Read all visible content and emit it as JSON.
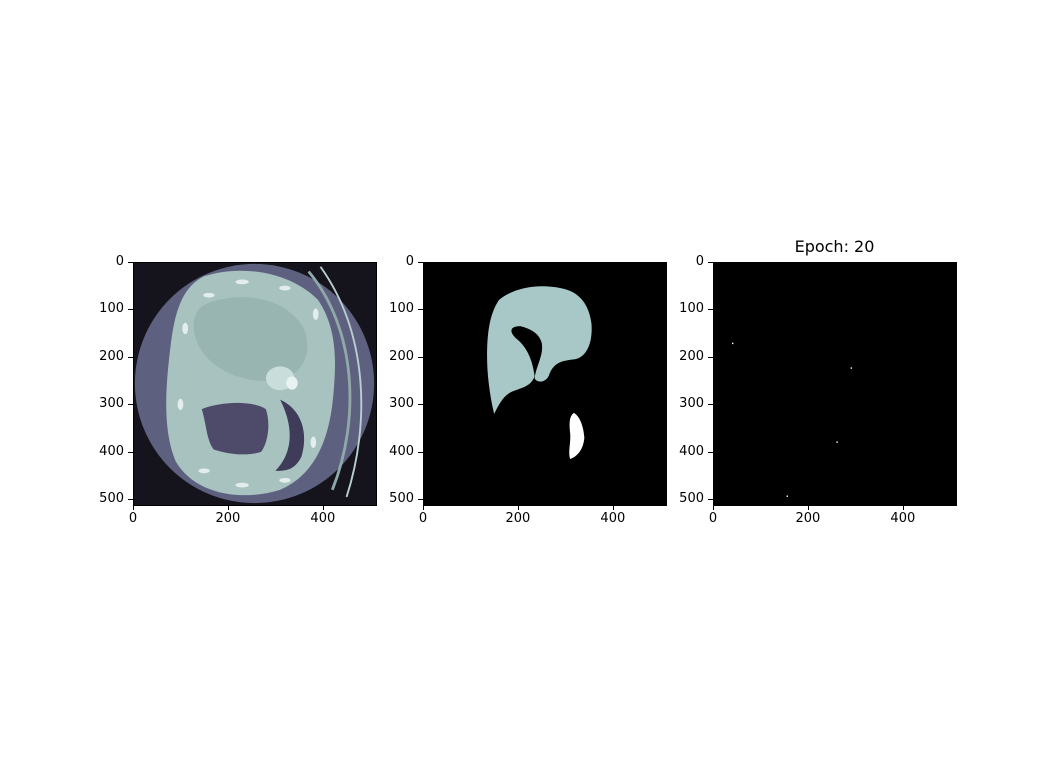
{
  "figure": {
    "panels": [
      {
        "title": "",
        "x_ticks": [
          "0",
          "200",
          "400"
        ],
        "y_ticks": [
          "0",
          "100",
          "200",
          "300",
          "400",
          "500"
        ],
        "image": "ct-scan-slice"
      },
      {
        "title": "",
        "x_ticks": [
          "0",
          "200",
          "400"
        ],
        "y_ticks": [
          "0",
          "100",
          "200",
          "300",
          "400",
          "500"
        ],
        "image": "ground-truth-mask"
      },
      {
        "title": "Epoch: 20",
        "x_ticks": [
          "0",
          "200",
          "400"
        ],
        "y_ticks": [
          "0",
          "100",
          "200",
          "300",
          "400",
          "500"
        ],
        "image": "predicted-mask"
      }
    ],
    "axis_range": [
      0,
      512
    ],
    "tick_values_x": [
      0,
      200,
      400
    ],
    "tick_values_y": [
      0,
      100,
      200,
      300,
      400,
      500
    ],
    "colors": {
      "ct_background": "#15141c",
      "ct_body": "#5e6080",
      "ct_tissue": "#a8c2c0",
      "mask_background": "#000000",
      "mask_liver": "#a8c8c8",
      "mask_lesion": "#ffffff"
    }
  }
}
